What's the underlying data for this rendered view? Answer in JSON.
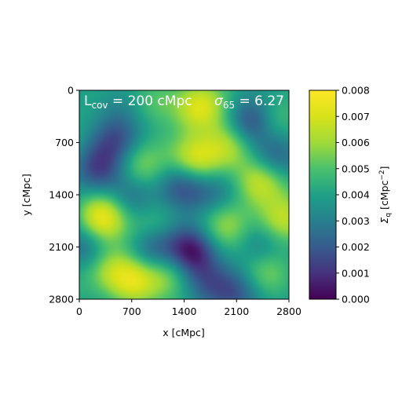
{
  "chart_data": {
    "type": "heatmap",
    "title": "",
    "xlabel": "x [cMpc]",
    "ylabel": "y [cMpc]",
    "xlim": [
      0,
      2800
    ],
    "ylim": [
      2800,
      0
    ],
    "x_ticks": [
      "0",
      "700",
      "1400",
      "2100",
      "2800"
    ],
    "y_ticks": [
      "0",
      "700",
      "1400",
      "2100",
      "2800"
    ],
    "annotations": [
      {
        "text_main": "L",
        "text_sub": "cov",
        "text_rest": " = 200 cMpc",
        "position": "top-left"
      },
      {
        "text_main": "σ",
        "text_sub": "65",
        "text_rest": " = 6.27",
        "position": "top-right"
      }
    ],
    "colorbar": {
      "label": "Σq [cMpc⁻²]",
      "label_main": "Σ",
      "label_sub": "q",
      "label_rest": " [cMpc",
      "label_sup": "−2",
      "label_end": "]",
      "range": [
        0.0,
        0.008
      ],
      "ticks": [
        "0.000",
        "0.001",
        "0.002",
        "0.003",
        "0.004",
        "0.005",
        "0.006",
        "0.007",
        "0.008"
      ],
      "colormap": "viridis"
    },
    "grid": false,
    "field_features": [
      {
        "x": 300,
        "y": 1700,
        "value": 0.0075
      },
      {
        "x": 720,
        "y": 2550,
        "value": 0.0072
      },
      {
        "x": 1600,
        "y": 220,
        "value": 0.007
      },
      {
        "x": 1550,
        "y": 950,
        "value": 0.0072
      },
      {
        "x": 2420,
        "y": 1220,
        "value": 0.007
      },
      {
        "x": 2700,
        "y": 1750,
        "value": 0.0066
      },
      {
        "x": 2000,
        "y": 750,
        "value": 0.0064
      },
      {
        "x": 1950,
        "y": 1800,
        "value": 0.006
      },
      {
        "x": 1200,
        "y": 2400,
        "value": 0.0062
      },
      {
        "x": 800,
        "y": 1000,
        "value": 0.0058
      },
      {
        "x": 2500,
        "y": 2400,
        "value": 0.0058
      },
      {
        "x": 380,
        "y": 2400,
        "value": 0.006
      },
      {
        "x": 1050,
        "y": 150,
        "value": 0.0055
      },
      {
        "x": 2600,
        "y": 400,
        "value": 0.0056
      },
      {
        "x": 1000,
        "y": 1800,
        "value": 0.0054
      },
      {
        "x": 1480,
        "y": 2170,
        "value": 0.0002
      },
      {
        "x": 2300,
        "y": 420,
        "value": 0.001
      },
      {
        "x": 1380,
        "y": 1250,
        "value": 0.0012
      },
      {
        "x": 1000,
        "y": 2150,
        "value": 0.0016
      },
      {
        "x": 250,
        "y": 1050,
        "value": 0.0018
      },
      {
        "x": 500,
        "y": 650,
        "value": 0.002
      },
      {
        "x": 2450,
        "y": 2100,
        "value": 0.0022
      },
      {
        "x": 2600,
        "y": 900,
        "value": 0.0018
      },
      {
        "x": 100,
        "y": 2100,
        "value": 0.002
      },
      {
        "x": 700,
        "y": 1450,
        "value": 0.0022
      },
      {
        "x": 1700,
        "y": 2600,
        "value": 0.0024
      },
      {
        "x": 2100,
        "y": 2700,
        "value": 0.002
      },
      {
        "x": 1800,
        "y": 1400,
        "value": 0.0026
      },
      {
        "x": 500,
        "y": 150,
        "value": 0.003
      }
    ]
  }
}
